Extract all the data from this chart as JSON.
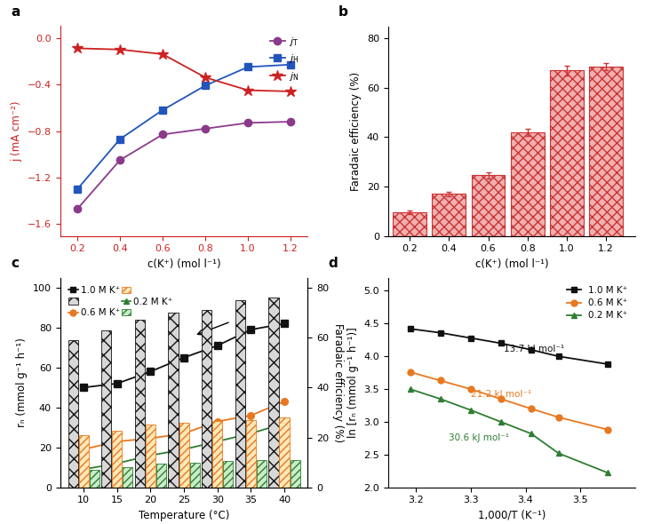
{
  "panel_a": {
    "x": [
      0.2,
      0.4,
      0.6,
      0.8,
      1.0,
      1.2
    ],
    "jT": [
      -1.47,
      -1.05,
      -0.83,
      -0.78,
      -0.73,
      -0.72
    ],
    "jH": [
      -1.3,
      -0.87,
      -0.62,
      -0.41,
      -0.25,
      -0.23
    ],
    "jN": [
      -0.09,
      -0.1,
      -0.14,
      -0.34,
      -0.45,
      -0.46
    ],
    "jT_color": "#8B3A8B",
    "jH_color": "#2255BB",
    "jN_color": "#CC2222",
    "xlabel": "c(K⁺) (mol l⁻¹)",
    "ylabel": "j (mA cm⁻²)",
    "yticks": [
      -1.6,
      -1.2,
      -0.8,
      -0.4,
      0.0
    ],
    "ylim": [
      -1.7,
      0.1
    ]
  },
  "panel_b": {
    "x": [
      0.2,
      0.4,
      0.6,
      0.8,
      1.0,
      1.2
    ],
    "FE": [
      9.5,
      17.0,
      24.5,
      42.0,
      67.0,
      68.5
    ],
    "FE_err": [
      0.8,
      1.0,
      1.2,
      1.5,
      2.0,
      1.5
    ],
    "bar_color": "#CC3333",
    "bar_fc": "#f0b0b0",
    "xlabel": "c(K⁺) (mol l⁻¹)",
    "ylabel": "Faradaic efficiency (%)",
    "ylim": [
      0,
      85
    ],
    "yticks": [
      0,
      20,
      40,
      60,
      80
    ]
  },
  "panel_c": {
    "temps": [
      10,
      15,
      20,
      25,
      30,
      35,
      40
    ],
    "rN_1M": [
      50,
      52,
      58,
      65,
      71,
      79,
      82
    ],
    "rN_06M": [
      19,
      23,
      24.5,
      27,
      33,
      36,
      43
    ],
    "rN_02M": [
      9,
      12,
      16,
      19,
      23,
      27,
      32
    ],
    "bar_1M": [
      59,
      63,
      67,
      70,
      71,
      75,
      76
    ],
    "bar_06M": [
      21,
      22.5,
      25,
      26,
      26.5,
      27,
      28
    ],
    "bar_02M": [
      7,
      8,
      9.5,
      10,
      10.5,
      11,
      11
    ],
    "color_1M": "#111111",
    "color_06M": "#E87820",
    "color_02M": "#2E7D32",
    "xlabel": "Temperature (°C)",
    "ylabel_left": "rₙ (mmol g⁻¹ h⁻¹)",
    "ylabel_right": "Faradaic efficiency (%)",
    "ylim_left": [
      0,
      105
    ],
    "ylim_right": [
      0,
      84
    ],
    "yticks_left": [
      0,
      20,
      40,
      60,
      80,
      100
    ],
    "yticks_right": [
      0,
      20,
      40,
      60,
      80
    ]
  },
  "panel_d": {
    "x_vals": [
      3.19,
      3.245,
      3.3,
      3.355,
      3.41,
      3.46,
      3.55
    ],
    "ln_1M": [
      4.42,
      4.36,
      4.28,
      4.2,
      4.1,
      4.0,
      3.88
    ],
    "ln_06M": [
      3.76,
      3.63,
      3.5,
      3.35,
      3.2,
      3.07,
      2.88
    ],
    "ln_02M": [
      3.5,
      3.35,
      3.18,
      3.0,
      2.82,
      2.52,
      2.22
    ],
    "color_1M": "#111111",
    "color_06M": "#E87820",
    "color_02M": "#2E7D32",
    "Ea_1M": "13.7 kJ mol⁻¹",
    "Ea_06M": "21.2 kJ mol⁻¹",
    "Ea_02M": "30.6 kJ mol⁻¹",
    "xlabel": "1,000/T (K⁻¹)",
    "ylabel": "ln [rₙ (mmol g⁻¹ h⁻¹)]",
    "xlim": [
      3.15,
      3.6
    ],
    "ylim": [
      2.0,
      5.2
    ],
    "yticks": [
      2.0,
      2.5,
      3.0,
      3.5,
      4.0,
      4.5,
      5.0
    ]
  }
}
